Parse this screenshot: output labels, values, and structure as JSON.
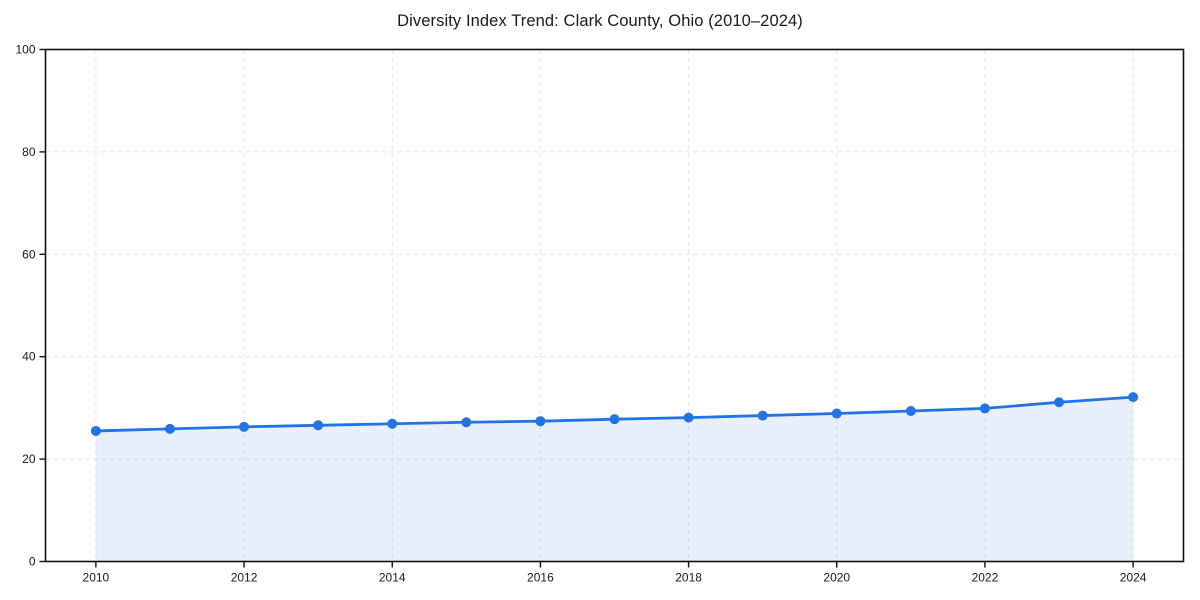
{
  "page": {
    "background": "#ffffff"
  },
  "chart_data": {
    "type": "line",
    "title": "Diversity Index Trend: Clark County, Ohio (2010–2024)",
    "x": [
      2010,
      2011,
      2012,
      2013,
      2014,
      2015,
      2016,
      2017,
      2018,
      2019,
      2020,
      2021,
      2022,
      2023,
      2024
    ],
    "series": [
      {
        "name": "Diversity Index",
        "values": [
          25.5,
          25.9,
          26.3,
          26.6,
          26.9,
          27.2,
          27.4,
          27.8,
          28.1,
          28.5,
          28.9,
          29.4,
          29.9,
          31.1,
          32.1
        ]
      }
    ],
    "xlabel": "",
    "ylabel": "",
    "xlim": [
      2009.32,
      2024.68
    ],
    "ylim": [
      0,
      100
    ],
    "xticks": [
      2010,
      2012,
      2014,
      2016,
      2018,
      2020,
      2022,
      2024
    ],
    "yticks": [
      0,
      20,
      40,
      60,
      80,
      100
    ],
    "grid": "dashed",
    "legend": "none",
    "marker": "circle",
    "area_fill": true,
    "colors": {
      "line": "#2173e6",
      "area": "#2173e6",
      "area_opacity": 0.11,
      "grid": "#e4e4e4",
      "axis": "#111111",
      "text": "#1a1a1a"
    }
  }
}
